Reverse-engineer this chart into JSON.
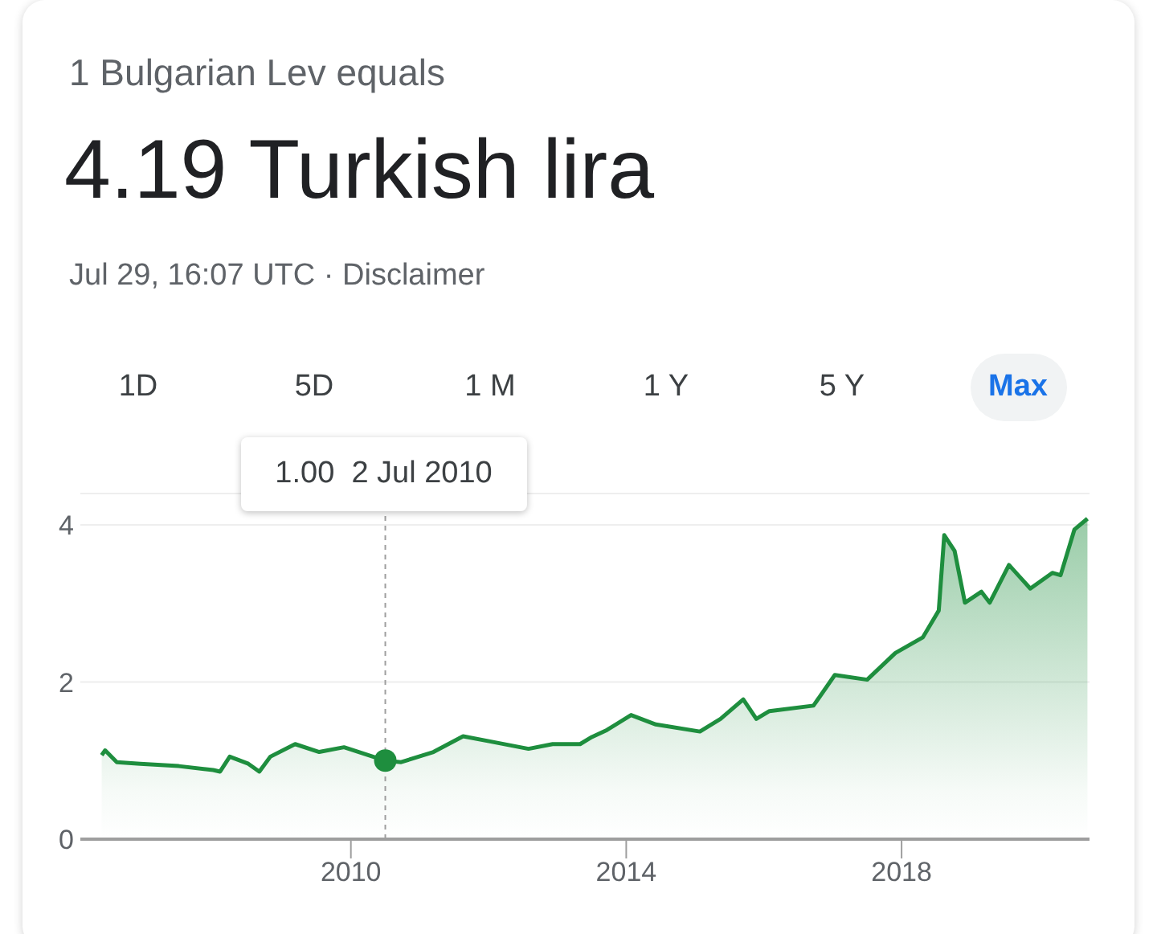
{
  "chart_data": {
    "type": "area",
    "subtitle": "1 Bulgarian Lev equals",
    "title": "4.19 Turkish lira",
    "annotations": [
      "Jul 29, 16:07 UTC · Disclaimer",
      "1D",
      "5D",
      "1 M",
      "1 Y",
      "5 Y",
      "Max"
    ],
    "x": [
      2006.38,
      2006.43,
      2006.6,
      2006.94,
      2007.5,
      2008.0,
      2008.1,
      2008.24,
      2008.51,
      2008.67,
      2008.83,
      2009.19,
      2009.54,
      2009.9,
      2010.5,
      2010.73,
      2011.2,
      2011.63,
      2011.99,
      2012.58,
      2012.93,
      2013.33,
      2013.5,
      2013.72,
      2014.07,
      2014.43,
      2015.07,
      2015.37,
      2015.7,
      2015.89,
      2016.08,
      2016.72,
      2017.03,
      2017.5,
      2017.91,
      2018.31,
      2018.54,
      2018.62,
      2018.77,
      2018.92,
      2019.16,
      2019.28,
      2019.56,
      2019.87,
      2020.19,
      2020.31,
      2020.51,
      2020.7
    ],
    "series": [
      {
        "color": "#1e8e3e",
        "values": [
          1.07,
          1.13,
          0.98,
          0.96,
          0.93,
          0.88,
          0.86,
          1.05,
          0.96,
          0.86,
          1.05,
          1.21,
          1.11,
          1.17,
          1.0,
          0.98,
          1.11,
          1.31,
          1.25,
          1.15,
          1.21,
          1.21,
          1.3,
          1.39,
          1.58,
          1.46,
          1.37,
          1.53,
          1.78,
          1.53,
          1.63,
          1.7,
          2.09,
          2.03,
          2.37,
          2.57,
          2.91,
          3.87,
          3.67,
          3.01,
          3.15,
          3.01,
          3.49,
          3.19,
          3.39,
          3.36,
          3.94,
          4.08
        ]
      }
    ],
    "xlim": [
      2006.07,
      2020.73
    ],
    "xticks": [
      2010,
      2014,
      2018
    ],
    "ylim": [
      0,
      4.4
    ],
    "yticks": [
      0,
      2,
      4
    ],
    "ref_lines": [
      {
        "axis": "x",
        "value": 2010.5,
        "label": "1.00  2 Jul 2010",
        "color": "#9e9e9e",
        "line_style": "dashed"
      }
    ],
    "grid": "y"
  }
}
